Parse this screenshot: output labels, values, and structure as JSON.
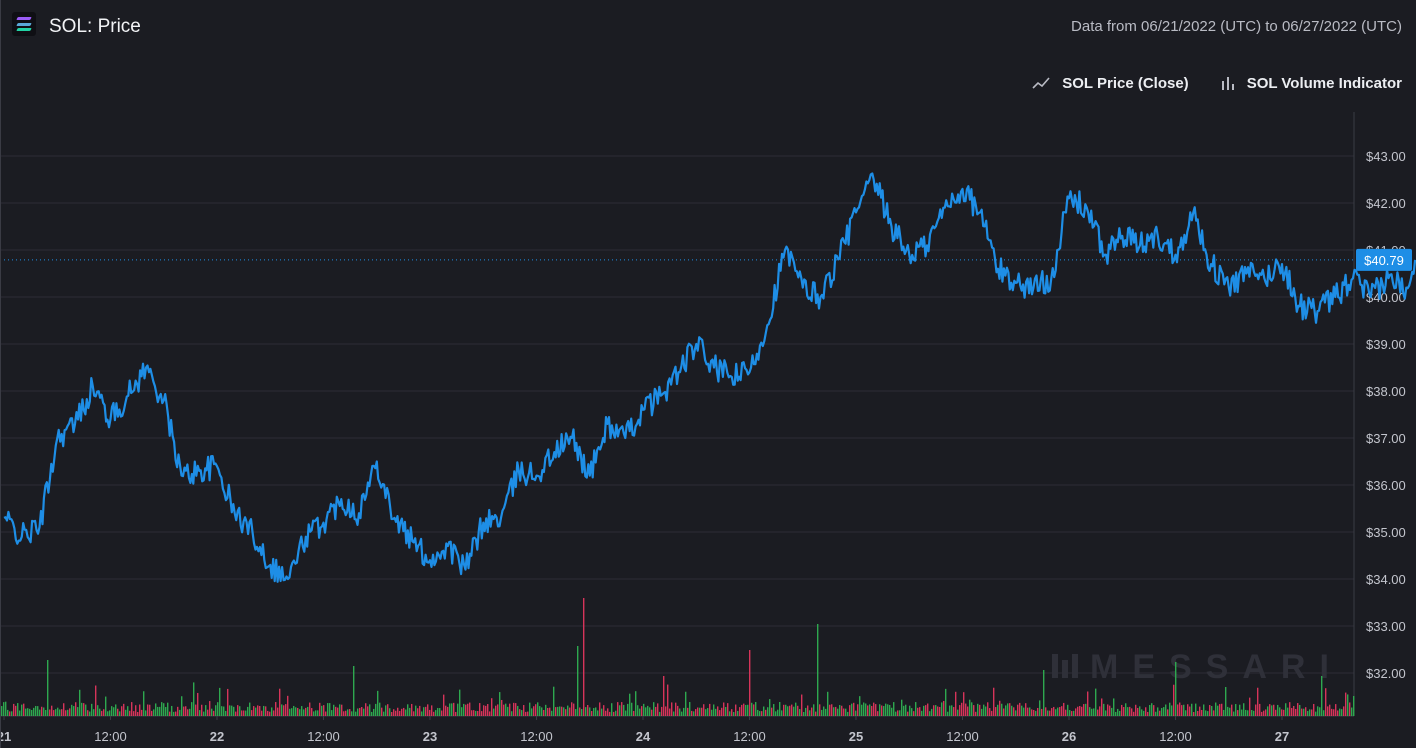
{
  "header": {
    "title": "SOL: Price",
    "range_text": "Data from 06/21/2022 (UTC) to 06/27/2022 (UTC)"
  },
  "legend": {
    "price_label": "SOL Price (Close)",
    "volume_label": "SOL Volume Indicator",
    "price_icon": "line-chart-icon",
    "volume_icon": "bar-chart-icon"
  },
  "watermark": "MESSARI",
  "colors": {
    "background": "#1b1c22",
    "price_line": "#1e8ee6",
    "volume_up": "#2ea84f",
    "volume_down": "#d6345a",
    "grid": "#2c2d35",
    "axis_text": "#c3c5cd"
  },
  "chart_data": {
    "type": "line",
    "title": "SOL: Price",
    "ylim": [
      31.2,
      44.0
    ],
    "y_ticks": [
      "$32.00",
      "$33.00",
      "$34.00",
      "$35.00",
      "$36.00",
      "$37.00",
      "$38.00",
      "$39.00",
      "$40.00",
      "$41.00",
      "$42.00",
      "$43.00"
    ],
    "x_ticks": [
      "21",
      "12:00",
      "22",
      "12:00",
      "23",
      "12:00",
      "24",
      "12:00",
      "25",
      "12:00",
      "26",
      "12:00",
      "27"
    ],
    "current_price_label": "$40.79",
    "current_price": 40.79,
    "xlim": [
      "2022-06-21T00:00",
      "2022-06-27T15:00"
    ],
    "series": [
      {
        "name": "SOL Price (Close)",
        "x": [
          "2022-06-21T00:00",
          "2022-06-21T02:00",
          "2022-06-21T04:00",
          "2022-06-21T06:00",
          "2022-06-21T08:00",
          "2022-06-21T10:00",
          "2022-06-21T12:00",
          "2022-06-21T14:00",
          "2022-06-21T16:00",
          "2022-06-21T18:00",
          "2022-06-21T20:00",
          "2022-06-21T22:00",
          "2022-06-22T00:00",
          "2022-06-22T02:00",
          "2022-06-22T04:00",
          "2022-06-22T06:00",
          "2022-06-22T08:00",
          "2022-06-22T10:00",
          "2022-06-22T12:00",
          "2022-06-22T14:00",
          "2022-06-22T16:00",
          "2022-06-22T18:00",
          "2022-06-22T20:00",
          "2022-06-22T22:00",
          "2022-06-23T00:00",
          "2022-06-23T02:00",
          "2022-06-23T04:00",
          "2022-06-23T06:00",
          "2022-06-23T08:00",
          "2022-06-23T10:00",
          "2022-06-23T12:00",
          "2022-06-23T14:00",
          "2022-06-23T16:00",
          "2022-06-23T18:00",
          "2022-06-23T20:00",
          "2022-06-23T22:00",
          "2022-06-24T00:00",
          "2022-06-24T02:00",
          "2022-06-24T04:00",
          "2022-06-24T06:00",
          "2022-06-24T08:00",
          "2022-06-24T10:00",
          "2022-06-24T12:00",
          "2022-06-24T14:00",
          "2022-06-24T16:00",
          "2022-06-24T18:00",
          "2022-06-24T20:00",
          "2022-06-24T22:00",
          "2022-06-25T00:00",
          "2022-06-25T02:00",
          "2022-06-25T04:00",
          "2022-06-25T06:00",
          "2022-06-25T08:00",
          "2022-06-25T10:00",
          "2022-06-25T12:00",
          "2022-06-25T14:00",
          "2022-06-25T16:00",
          "2022-06-25T18:00",
          "2022-06-25T20:00",
          "2022-06-25T22:00",
          "2022-06-26T00:00",
          "2022-06-26T02:00",
          "2022-06-26T04:00",
          "2022-06-26T06:00",
          "2022-06-26T08:00",
          "2022-06-26T10:00",
          "2022-06-26T12:00",
          "2022-06-26T14:00",
          "2022-06-26T16:00",
          "2022-06-26T18:00",
          "2022-06-26T20:00",
          "2022-06-26T22:00",
          "2022-06-27T00:00",
          "2022-06-27T02:00",
          "2022-06-27T04:00",
          "2022-06-27T06:00",
          "2022-06-27T08:00",
          "2022-06-27T10:00",
          "2022-06-27T12:00",
          "2022-06-27T14:00",
          "2022-06-27T15:00"
        ],
        "values": [
          35.3,
          34.9,
          35.1,
          37.0,
          37.3,
          38.1,
          37.4,
          37.9,
          38.5,
          37.8,
          36.2,
          36.3,
          36.4,
          35.4,
          35.0,
          34.3,
          34.0,
          34.9,
          35.2,
          35.7,
          35.4,
          36.5,
          35.3,
          34.8,
          34.4,
          34.7,
          34.2,
          35.2,
          35.3,
          36.3,
          36.2,
          36.7,
          37.0,
          36.2,
          37.3,
          37.0,
          37.6,
          37.9,
          38.4,
          39.0,
          38.5,
          38.3,
          38.4,
          39.4,
          41.0,
          40.2,
          40.0,
          40.8,
          41.8,
          42.5,
          41.5,
          40.9,
          41.1,
          41.9,
          42.3,
          41.8,
          40.6,
          40.3,
          40.2,
          40.4,
          42.1,
          41.9,
          40.9,
          41.3,
          41.1,
          41.3,
          40.9,
          41.8,
          40.7,
          40.2,
          40.5,
          40.4,
          40.7,
          39.8,
          39.7,
          40.0,
          40.4,
          40.0,
          40.4,
          40.2,
          40.79
        ]
      }
    ]
  }
}
